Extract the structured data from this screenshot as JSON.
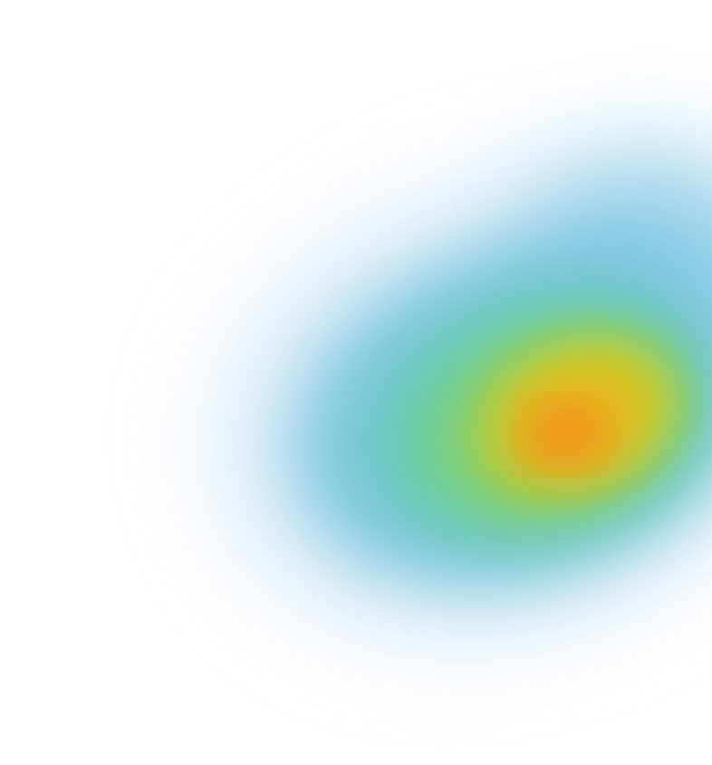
{
  "heatmap": {
    "background_color": "#ffffff",
    "palette": {
      "outer": "#bcdcf2",
      "cool": "#7cc4e4",
      "teal": "#63c6c0",
      "green": "#6fd08a",
      "yellow_green": "#b4cf3a",
      "yellow": "#e3c61a",
      "orange": "#f29a1a",
      "hot": "#f28a1a"
    }
  }
}
